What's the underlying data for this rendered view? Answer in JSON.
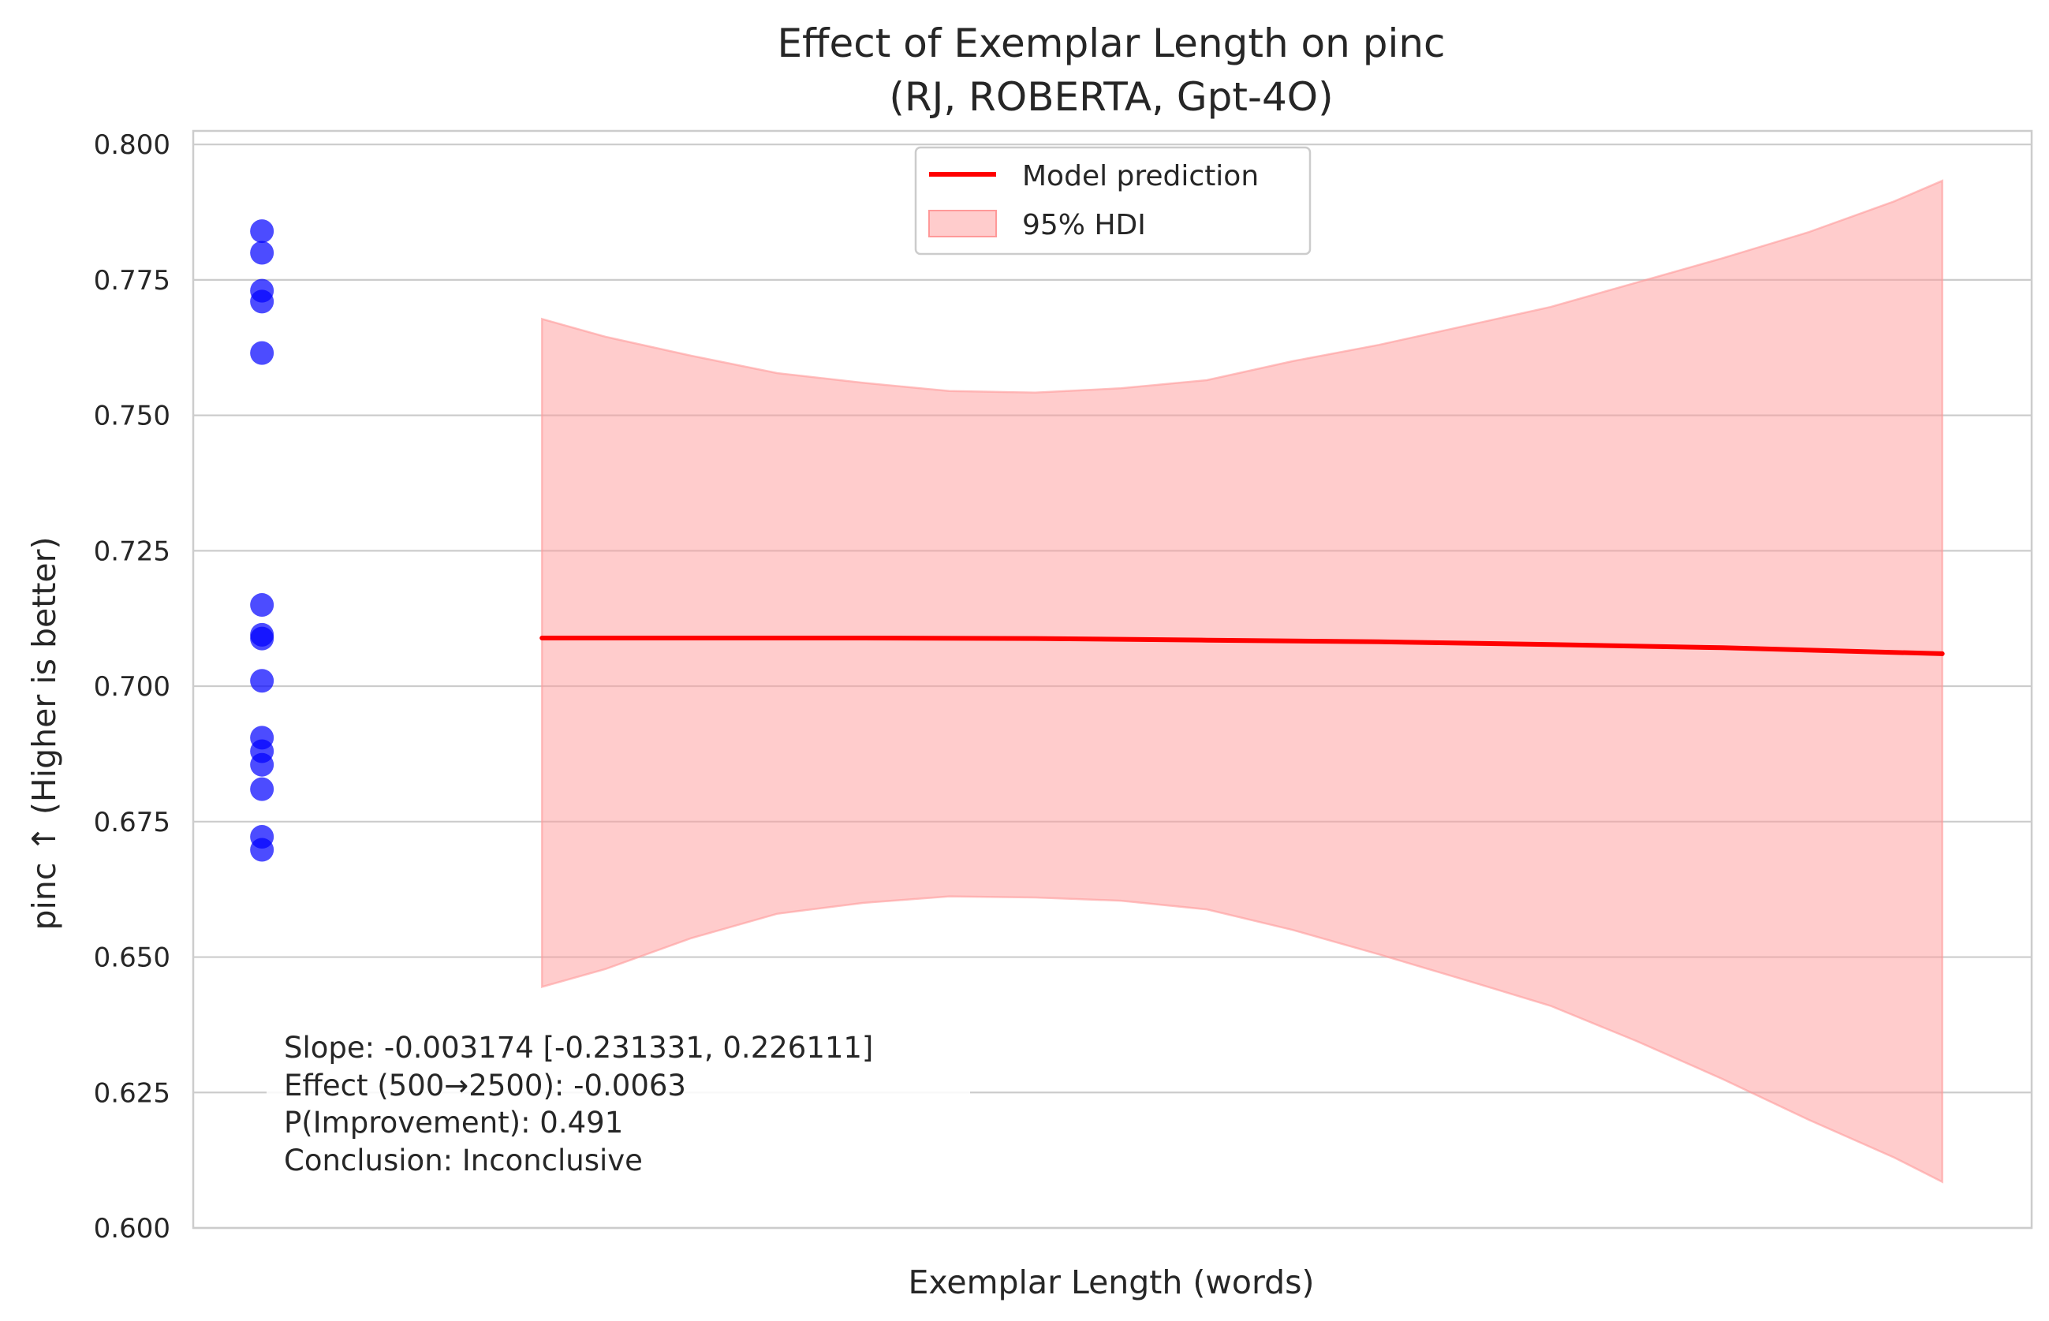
{
  "chart_data": {
    "type": "line",
    "title": "Effect of Exemplar Length on pinc",
    "subtitle": "(RJ, ROBERTA, Gpt-4O)",
    "xlabel": "Exemplar Length (words)",
    "ylabel": "pinc ↑ (Higher is better)",
    "ylim": [
      0.6,
      0.8025
    ],
    "xlim": [
      -0.4,
      10.3
    ],
    "grid": "y-axis on",
    "legend_placement": "upper center",
    "y_ticks": [
      "0.600",
      "0.625",
      "0.650",
      "0.675",
      "0.700",
      "0.725",
      "0.750",
      "0.775",
      "0.800"
    ],
    "scatter": {
      "x": 0,
      "values": [
        0.784,
        0.78,
        0.773,
        0.771,
        0.7615,
        0.715,
        0.7095,
        0.7088,
        0.701,
        0.6905,
        0.688,
        0.6855,
        0.681,
        0.6722,
        0.6698
      ],
      "color": "#0000ff"
    },
    "series": [
      {
        "name": "Model prediction",
        "color": "#ff0000",
        "x": [
          1.63,
          2.5,
          3.5,
          4.5,
          5.5,
          6.5,
          7.5,
          8.5,
          9.78
        ],
        "values": [
          0.7089,
          0.7089,
          0.7089,
          0.7088,
          0.7085,
          0.7082,
          0.7077,
          0.7071,
          0.706
        ]
      },
      {
        "name": "95% HDI",
        "color": "#ff9999",
        "x": [
          1.63,
          2.0,
          2.5,
          3.0,
          3.5,
          4.0,
          4.5,
          5.0,
          5.5,
          6.0,
          6.5,
          7.0,
          7.5,
          8.0,
          8.5,
          9.0,
          9.5,
          9.78
        ],
        "upper": [
          0.7678,
          0.7645,
          0.761,
          0.7578,
          0.756,
          0.7545,
          0.7542,
          0.755,
          0.7565,
          0.76,
          0.763,
          0.7665,
          0.77,
          0.7745,
          0.779,
          0.7838,
          0.7895,
          0.7933
        ],
        "lower": [
          0.6445,
          0.6478,
          0.6535,
          0.658,
          0.66,
          0.6612,
          0.661,
          0.6604,
          0.6588,
          0.655,
          0.6505,
          0.6458,
          0.641,
          0.6345,
          0.6275,
          0.62,
          0.613,
          0.6085
        ]
      }
    ],
    "legend": [
      "Model prediction",
      "95% HDI"
    ]
  },
  "annotation": {
    "lines": [
      "Slope: -0.003174 [-0.231331, 0.226111]",
      "Effect (500→2500): -0.0063",
      "P(Improvement): 0.491",
      "Conclusion: Inconclusive"
    ]
  },
  "colors": {
    "scatter": "#0000ff",
    "line": "#ff0000",
    "band": "#ff9999",
    "grid": "#cccccc"
  }
}
